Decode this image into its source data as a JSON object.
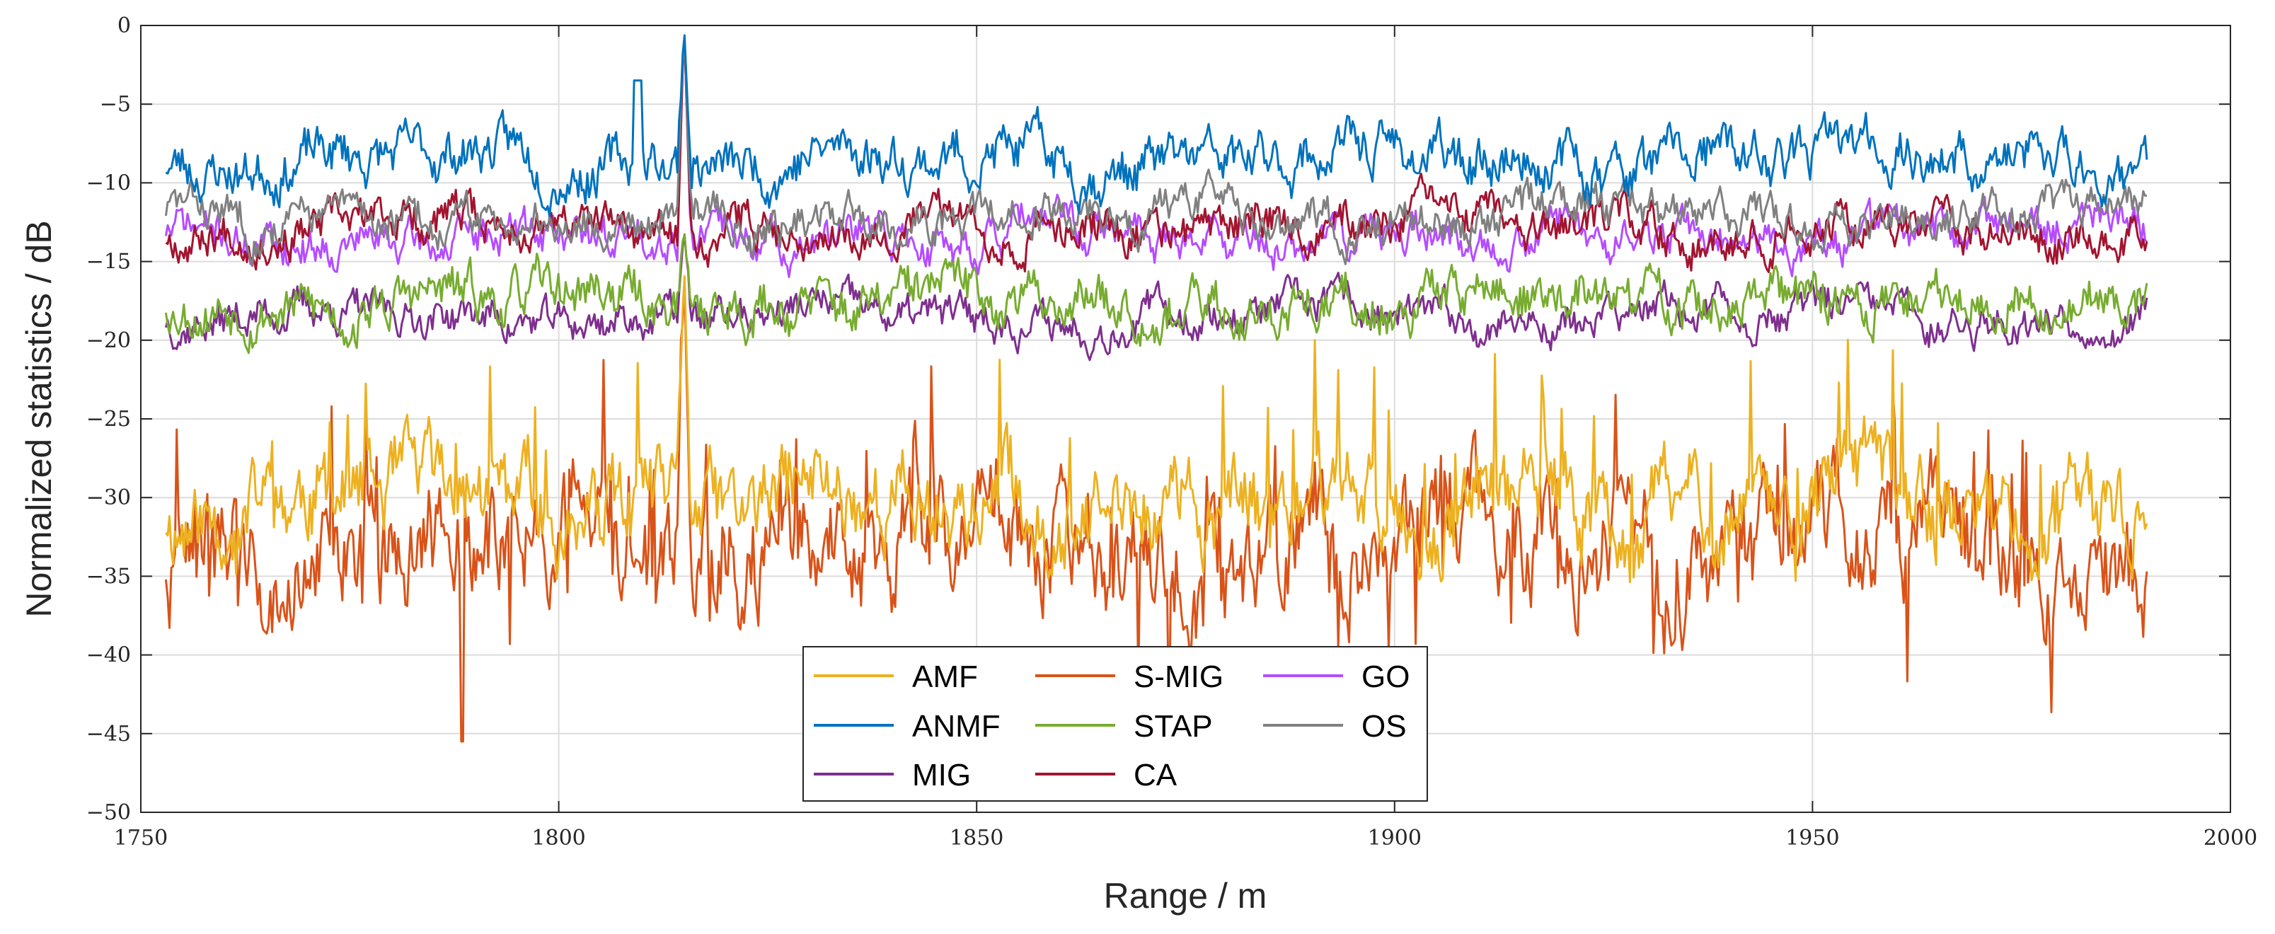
{
  "chart_data": {
    "type": "line",
    "title": "",
    "xlabel": "Range / m",
    "ylabel": "Normalized statistics / dB",
    "xlim": [
      1750,
      2000
    ],
    "ylim": [
      -50,
      0
    ],
    "x_ticks": [
      1750,
      1800,
      1850,
      1900,
      1950,
      2000
    ],
    "y_ticks": [
      0,
      -5,
      -10,
      -15,
      -20,
      -25,
      -30,
      -35,
      -40,
      -45,
      -50
    ],
    "grid": true,
    "legend_position": "bottom-center",
    "legend_columns": 3,
    "x_range_of_data": [
      1753,
      1990
    ],
    "peak": {
      "x": 1815,
      "y": 0
    },
    "series": [
      {
        "name": "AMF",
        "color": "#EDB120",
        "approx_level": -30.5,
        "fluct": 2.8,
        "seed": 11
      },
      {
        "name": "ANMF",
        "color": "#0072BD",
        "approx_level": -8.5,
        "fluct": 1.6,
        "seed": 23
      },
      {
        "name": "MIG",
        "color": "#7E2F8E",
        "approx_level": -18.5,
        "fluct": 1.2,
        "seed": 37
      },
      {
        "name": "S-MIG",
        "color": "#D95319",
        "approx_level": -33.0,
        "fluct": 3.5,
        "seed": 41
      },
      {
        "name": "STAP",
        "color": "#77AC30",
        "approx_level": -17.5,
        "fluct": 1.6,
        "seed": 53
      },
      {
        "name": "CA",
        "color": "#A2142F",
        "approx_level": -12.8,
        "fluct": 1.3,
        "seed": 67
      },
      {
        "name": "GO",
        "color": "#B54CFF",
        "approx_level": -13.5,
        "fluct": 1.3,
        "seed": 71
      },
      {
        "name": "OS",
        "color": "#808080",
        "approx_level": -12.2,
        "fluct": 1.3,
        "seed": 83
      }
    ]
  }
}
